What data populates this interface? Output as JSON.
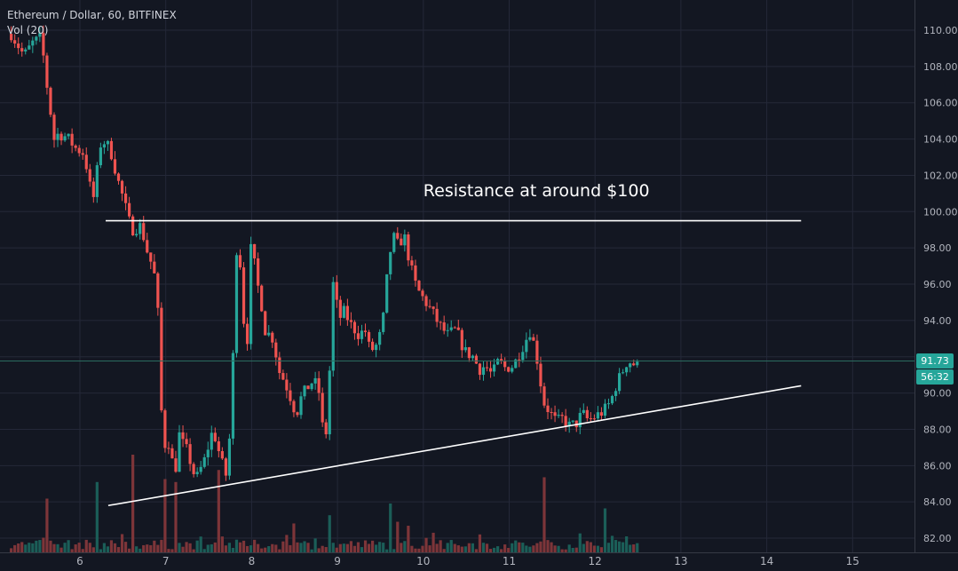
{
  "header": {
    "title": "Ethereum / Dollar, 60, BITFINEX",
    "volume_label": "Vol (20)"
  },
  "price_axis": {
    "labels": [
      "110.00",
      "108.00",
      "106.00",
      "104.00",
      "102.00",
      "100.00",
      "98.00",
      "96.00",
      "94.00",
      "90.00",
      "88.00",
      "86.00",
      "84.00",
      "82.00"
    ],
    "current_price": "91.73",
    "countdown": "56:32"
  },
  "time_axis": {
    "labels": [
      "6",
      "7",
      "8",
      "9",
      "10",
      "11",
      "12",
      "13",
      "14",
      "15"
    ]
  },
  "annotation": {
    "text": "Resistance at around $100"
  },
  "colors": {
    "background": "#131722",
    "grid": "#242838",
    "up": "#26a69a",
    "down": "#ef5350",
    "up_volume": "#1b5e58",
    "down_volume": "#7d3539",
    "drawing": "#ffffff",
    "price_badge": "#26a69a",
    "timer_badge": "#26a69a"
  },
  "chart_data": {
    "type": "candlestick",
    "title": "Ethereum / Dollar, 60, BITFINEX",
    "symbol": "ETH/USD",
    "exchange": "BITFINEX",
    "interval": "60",
    "ylim": [
      81.5,
      111.5
    ],
    "xlim": [
      5.2,
      15.8
    ],
    "grid": true,
    "yticks": [
      110,
      108,
      106,
      104,
      102,
      100,
      98,
      96,
      94,
      92,
      90,
      88,
      86,
      84,
      82
    ],
    "xticks": [
      6,
      7,
      8,
      9,
      10,
      11,
      12,
      13,
      14,
      15
    ],
    "current_price": 91.73,
    "path": [
      [
        5.2,
        109.8
      ],
      [
        5.35,
        108.6
      ],
      [
        5.45,
        109.3
      ],
      [
        5.55,
        109.6
      ],
      [
        5.6,
        107.5
      ],
      [
        5.7,
        104
      ],
      [
        5.75,
        104.3
      ],
      [
        5.85,
        104.1
      ],
      [
        5.95,
        103.5
      ],
      [
        6.05,
        103.2
      ],
      [
        6.15,
        100.5
      ],
      [
        6.25,
        104
      ],
      [
        6.35,
        103.5
      ],
      [
        6.45,
        101.6
      ],
      [
        6.5,
        100.8
      ],
      [
        6.6,
        99
      ],
      [
        6.7,
        99.2
      ],
      [
        6.75,
        98.5
      ],
      [
        6.8,
        97.5
      ],
      [
        6.85,
        97
      ],
      [
        6.9,
        95.5
      ],
      [
        6.95,
        89
      ],
      [
        7.0,
        86.8
      ],
      [
        7.05,
        87.5
      ],
      [
        7.1,
        85
      ],
      [
        7.15,
        87.8
      ],
      [
        7.2,
        87.2
      ],
      [
        7.25,
        86.8
      ],
      [
        7.35,
        85.2
      ],
      [
        7.45,
        86.3
      ],
      [
        7.55,
        88
      ],
      [
        7.65,
        86.2
      ],
      [
        7.72,
        85.2
      ],
      [
        7.78,
        91.5
      ],
      [
        7.82,
        97.8
      ],
      [
        7.85,
        98.6
      ],
      [
        7.9,
        94.2
      ],
      [
        7.95,
        93
      ],
      [
        8.0,
        98.9
      ],
      [
        8.05,
        96.2
      ],
      [
        8.1,
        95.5
      ],
      [
        8.15,
        93.5
      ],
      [
        8.25,
        93
      ],
      [
        8.32,
        91.2
      ],
      [
        8.38,
        90.7
      ],
      [
        8.45,
        89.8
      ],
      [
        8.52,
        88.8
      ],
      [
        8.58,
        89.8
      ],
      [
        8.65,
        90.3
      ],
      [
        8.72,
        90.7
      ],
      [
        8.78,
        90.2
      ],
      [
        8.84,
        87.5
      ],
      [
        8.88,
        88
      ],
      [
        8.95,
        96
      ],
      [
        9.02,
        94.1
      ],
      [
        9.08,
        94.5
      ],
      [
        9.15,
        93.8
      ],
      [
        9.25,
        93.2
      ],
      [
        9.32,
        93.5
      ],
      [
        9.38,
        92.3
      ],
      [
        9.45,
        92.6
      ],
      [
        9.52,
        93.5
      ],
      [
        9.58,
        96.5
      ],
      [
        9.64,
        98.7
      ],
      [
        9.7,
        98.2
      ],
      [
        9.78,
        98.6
      ],
      [
        9.85,
        97
      ],
      [
        9.92,
        95.8
      ],
      [
        10.0,
        95.2
      ],
      [
        10.1,
        94.5
      ],
      [
        10.18,
        93.8
      ],
      [
        10.28,
        93.2
      ],
      [
        10.38,
        93.5
      ],
      [
        10.48,
        92.3
      ],
      [
        10.58,
        92
      ],
      [
        10.65,
        91.3
      ],
      [
        10.72,
        91.5
      ],
      [
        10.8,
        91
      ],
      [
        10.88,
        91.8
      ],
      [
        10.95,
        91.4
      ],
      [
        11.05,
        91.5
      ],
      [
        11.15,
        92.5
      ],
      [
        11.25,
        93.5
      ],
      [
        11.32,
        92
      ],
      [
        11.4,
        89.5
      ],
      [
        11.48,
        88.9
      ],
      [
        11.55,
        88.4
      ],
      [
        11.62,
        88.6
      ],
      [
        11.7,
        88.2
      ],
      [
        11.78,
        88.3
      ],
      [
        11.85,
        88.9
      ],
      [
        11.92,
        88.5
      ],
      [
        12.0,
        88.7
      ],
      [
        12.1,
        89
      ],
      [
        12.18,
        89.5
      ],
      [
        12.25,
        90.5
      ],
      [
        12.32,
        91.2
      ],
      [
        12.38,
        91.8
      ],
      [
        12.45,
        91.6
      ],
      [
        12.5,
        91.75
      ]
    ],
    "series": [],
    "trendlines": [
      {
        "name": "resistance",
        "x": [
          6.3,
          14.4
        ],
        "y": [
          99.5,
          99.5
        ]
      },
      {
        "name": "support",
        "x": [
          6.33,
          14.4
        ],
        "y": [
          83.8,
          90.4
        ]
      }
    ],
    "annotations": [
      {
        "text": "Resistance at around $100",
        "x": 10.0,
        "y": 101.2
      }
    ],
    "volume": {
      "label": "Vol (20)",
      "spikes": [
        [
          6.6,
          1.0
        ],
        [
          7.0,
          0.75
        ],
        [
          7.1,
          0.72
        ],
        [
          7.6,
          0.72
        ],
        [
          6.2,
          0.72
        ],
        [
          5.6,
          0.55
        ],
        [
          11.4,
          0.7
        ],
        [
          9.6,
          0.5
        ],
        [
          12.1,
          0.45
        ],
        [
          8.9,
          0.38
        ]
      ]
    }
  }
}
